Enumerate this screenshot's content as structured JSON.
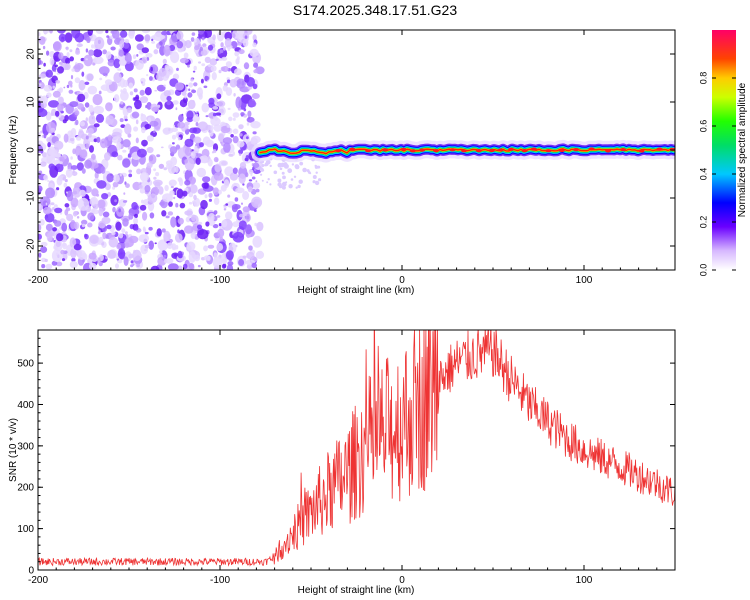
{
  "title": "S174.2025.348.17.51.G23",
  "chart_data": [
    {
      "type": "heatmap",
      "xlabel": "Height of straight line (km)",
      "ylabel": "Frequency (Hz)",
      "xlim": [
        -200,
        150
      ],
      "ylim": [
        -25,
        25
      ],
      "xticks": [
        -200,
        -100,
        0,
        100
      ],
      "yticks": [
        -20,
        -10,
        0,
        10,
        20
      ],
      "noise_region_x": [
        -200,
        -78
      ],
      "signal_band": {
        "x_start": -78,
        "x_end": 150,
        "center_hz": 0,
        "width_hz": 2
      },
      "colorbar": {
        "label": "Normalized spectral amplitude",
        "range": [
          0.0,
          1.0
        ],
        "ticks": [
          0.0,
          0.2,
          0.4,
          0.6,
          0.8
        ]
      }
    },
    {
      "type": "line",
      "xlabel": "Height of straight line (km)",
      "ylabel": "SNR (10 * v/v)",
      "xlim": [
        -200,
        150
      ],
      "ylim": [
        0,
        580
      ],
      "xticks": [
        -200,
        -100,
        0,
        100
      ],
      "yticks": [
        0,
        100,
        200,
        300,
        400,
        500
      ],
      "color": "#ee3333",
      "series": [
        {
          "name": "SNR",
          "x": [
            -200,
            -150,
            -100,
            -75,
            -70,
            -60,
            -50,
            -40,
            -30,
            -20,
            -10,
            0,
            10,
            20,
            30,
            40,
            50,
            60,
            70,
            80,
            90,
            100,
            110,
            120,
            130,
            140,
            150
          ],
          "y": [
            20,
            20,
            20,
            20,
            30,
            90,
            140,
            190,
            230,
            300,
            330,
            360,
            400,
            460,
            500,
            520,
            530,
            460,
            400,
            360,
            320,
            290,
            270,
            250,
            230,
            210,
            185
          ]
        }
      ]
    }
  ]
}
